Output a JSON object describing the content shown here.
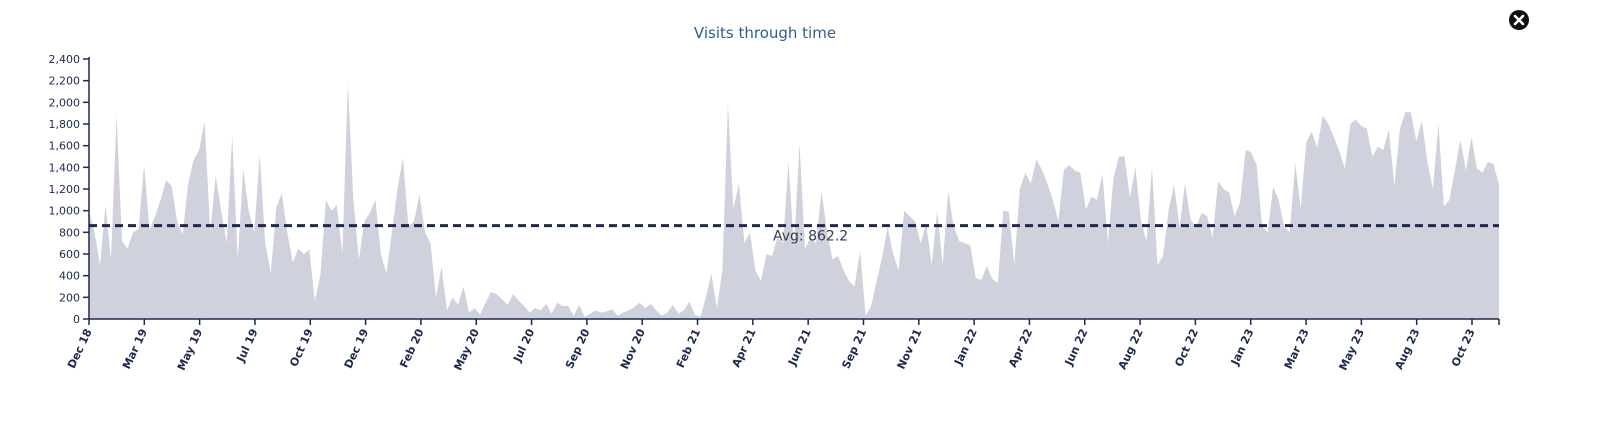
{
  "close_icon": "close-icon",
  "chart_data": {
    "type": "area",
    "title": "Visits through time",
    "xlabel": "",
    "ylabel": "",
    "ylim": [
      0,
      2400
    ],
    "y_ticks": [
      0,
      200,
      400,
      600,
      800,
      1000,
      1200,
      1400,
      1600,
      1800,
      2000,
      2200,
      2400
    ],
    "y_tick_labels": [
      "0",
      "200",
      "400",
      "600",
      "800",
      "1,000",
      "1,200",
      "1,400",
      "1,600",
      "1,800",
      "2,000",
      "2,200",
      "2,400"
    ],
    "x_tick_labels": [
      "Dec 18",
      "Mar 19",
      "May 19",
      "Jul 19",
      "Oct 19",
      "Dec 19",
      "Feb 20",
      "May 20",
      "Jul 20",
      "Sep 20",
      "Nov 20",
      "Feb 21",
      "Apr 21",
      "Jun 21",
      "Sep 21",
      "Nov 21",
      "Jan 22",
      "Apr 22",
      "Jun 22",
      "Aug 22",
      "Oct 22",
      "Jan 23",
      "Mar 23",
      "May 23",
      "Aug 23",
      "Oct 23"
    ],
    "grid": false,
    "area_color": "#cfd2dc",
    "average": {
      "value": 862.2,
      "label": "Avg: 862.2",
      "color": "#1d2a4d"
    },
    "series": [
      {
        "values": [
          1000,
          800,
          500,
          1050,
          550,
          1880,
          720,
          650,
          800,
          830,
          1420,
          820,
          950,
          1100,
          1280,
          1230,
          900,
          780,
          1250,
          1470,
          1560,
          1820,
          800,
          1320,
          1000,
          700,
          1700,
          550,
          1380,
          1000,
          800,
          1520,
          700,
          420,
          1030,
          1160,
          800,
          520,
          650,
          600,
          640,
          170,
          400,
          1100,
          1000,
          1050,
          600,
          2180,
          1100,
          550,
          900,
          980,
          1100,
          600,
          420,
          800,
          1200,
          1490,
          850,
          900,
          1150,
          800,
          700,
          200,
          480,
          80,
          200,
          130,
          300,
          60,
          100,
          40,
          150,
          250,
          230,
          180,
          130,
          230,
          170,
          120,
          60,
          100,
          80,
          140,
          50,
          150,
          120,
          120,
          30,
          130,
          20,
          50,
          80,
          60,
          70,
          90,
          30,
          60,
          80,
          110,
          150,
          100,
          140,
          80,
          30,
          60,
          130,
          50,
          80,
          160,
          40,
          20,
          200,
          420,
          100,
          450,
          1980,
          1020,
          1250,
          700,
          800,
          450,
          350,
          600,
          580,
          750,
          700,
          1450,
          650,
          1620,
          650,
          750,
          700,
          1180,
          800,
          550,
          580,
          450,
          350,
          300,
          630,
          30,
          120,
          350,
          570,
          850,
          600,
          450,
          1000,
          950,
          900,
          700,
          880,
          500,
          1000,
          500,
          1180,
          850,
          720,
          700,
          680,
          380,
          360,
          490,
          370,
          330,
          1000,
          990,
          500,
          1200,
          1350,
          1250,
          1470,
          1380,
          1250,
          1100,
          900,
          1380,
          1420,
          1370,
          1350,
          1010,
          1130,
          1100,
          1340,
          700,
          1300,
          1500,
          1500,
          1120,
          1400,
          900,
          720,
          1400,
          500,
          580,
          1000,
          1240,
          850,
          1250,
          920,
          850,
          980,
          950,
          750,
          1270,
          1200,
          1170,
          950,
          1080,
          1560,
          1540,
          1420,
          850,
          800,
          1220,
          1100,
          850,
          800,
          1440,
          1020,
          1630,
          1730,
          1580,
          1880,
          1800,
          1680,
          1550,
          1390,
          1800,
          1840,
          1780,
          1760,
          1500,
          1590,
          1560,
          1750,
          1230,
          1750,
          1910,
          1910,
          1640,
          1830,
          1450,
          1200,
          1800,
          1040,
          1100,
          1380,
          1650,
          1370,
          1680,
          1390,
          1350,
          1450,
          1430,
          1240
        ]
      }
    ]
  }
}
